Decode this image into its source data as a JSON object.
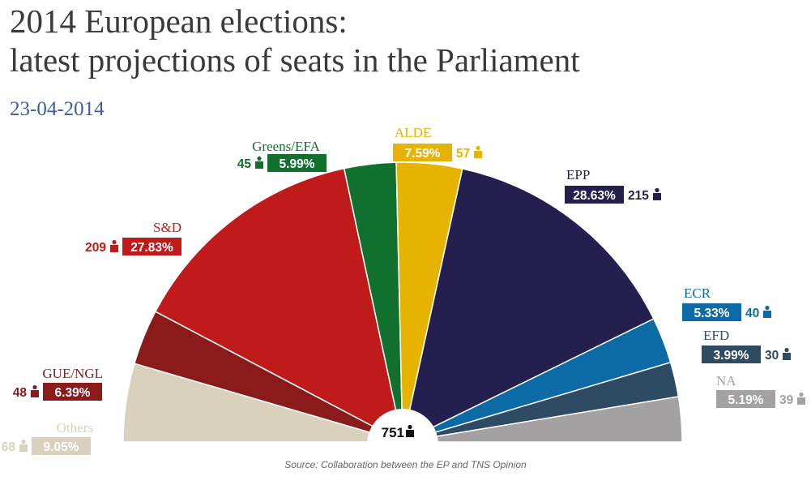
{
  "header": {
    "title_line1": "2014 European elections:",
    "title_line2": "latest projections of seats in the Parliament",
    "date": "23-04-2014"
  },
  "source": "Source: Collaboration between the EP and TNS Opinion",
  "chart_data": {
    "type": "pie",
    "subtype": "parliament-hemicycle",
    "total_seats": 751,
    "total_label": "751",
    "segments": [
      {
        "name": "Others",
        "seats": 68,
        "seats_label": "68",
        "pct_label": "9.05%",
        "color": "#d9d1bb",
        "side": "left"
      },
      {
        "name": "GUE/NGL",
        "seats": 48,
        "seats_label": "48",
        "pct_label": "6.39%",
        "color": "#8b1a1a",
        "side": "left"
      },
      {
        "name": "S&D",
        "seats": 209,
        "seats_label": "209",
        "pct_label": "27.83%",
        "color": "#bf1b1b",
        "side": "left"
      },
      {
        "name": "Greens/EFA",
        "seats": 45,
        "seats_label": "45",
        "pct_label": "5.99%",
        "color": "#12702f",
        "side": "left"
      },
      {
        "name": "ALDE",
        "seats": 57,
        "seats_label": "57",
        "pct_label": "7.59%",
        "color": "#e6b300",
        "side": "right"
      },
      {
        "name": "EPP",
        "seats": 215,
        "seats_label": "215",
        "pct_label": "28.63%",
        "color": "#23204f",
        "side": "right"
      },
      {
        "name": "ECR",
        "seats": 40,
        "seats_label": "40",
        "pct_label": "5.33%",
        "color": "#0c6aa6",
        "side": "right"
      },
      {
        "name": "EFD",
        "seats": 30,
        "seats_label": "30",
        "pct_label": "3.99%",
        "color": "#2f4a63",
        "side": "right"
      },
      {
        "name": "NA",
        "seats": 39,
        "seats_label": "39",
        "pct_label": "5.19%",
        "color": "#a3a1a1",
        "side": "right"
      }
    ]
  }
}
